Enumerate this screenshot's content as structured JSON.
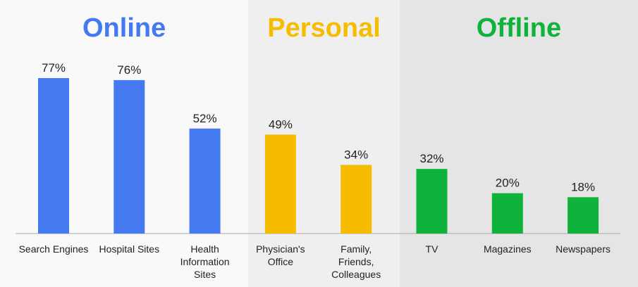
{
  "chart_data": {
    "type": "bar",
    "groups": [
      {
        "name": "Online",
        "color": "#4479f0",
        "categories": [
          "Search Engines",
          "Hospital Sites",
          "Health\nInformation\nSites"
        ],
        "values": [
          77,
          76,
          52
        ],
        "value_labels": [
          "77%",
          "76%",
          "52%"
        ]
      },
      {
        "name": "Personal",
        "color": "#f6bd00",
        "categories": [
          "Physician's\nOffice",
          "Family,\nFriends,\nColleagues"
        ],
        "values": [
          49,
          34
        ],
        "value_labels": [
          "49%",
          "34%"
        ]
      },
      {
        "name": "Offline",
        "color": "#0fb33b",
        "categories": [
          "TV",
          "Magazines",
          "Newspapers"
        ],
        "values": [
          32,
          20,
          18
        ],
        "value_labels": [
          "32%",
          "20%",
          "18%"
        ]
      }
    ]
  }
}
